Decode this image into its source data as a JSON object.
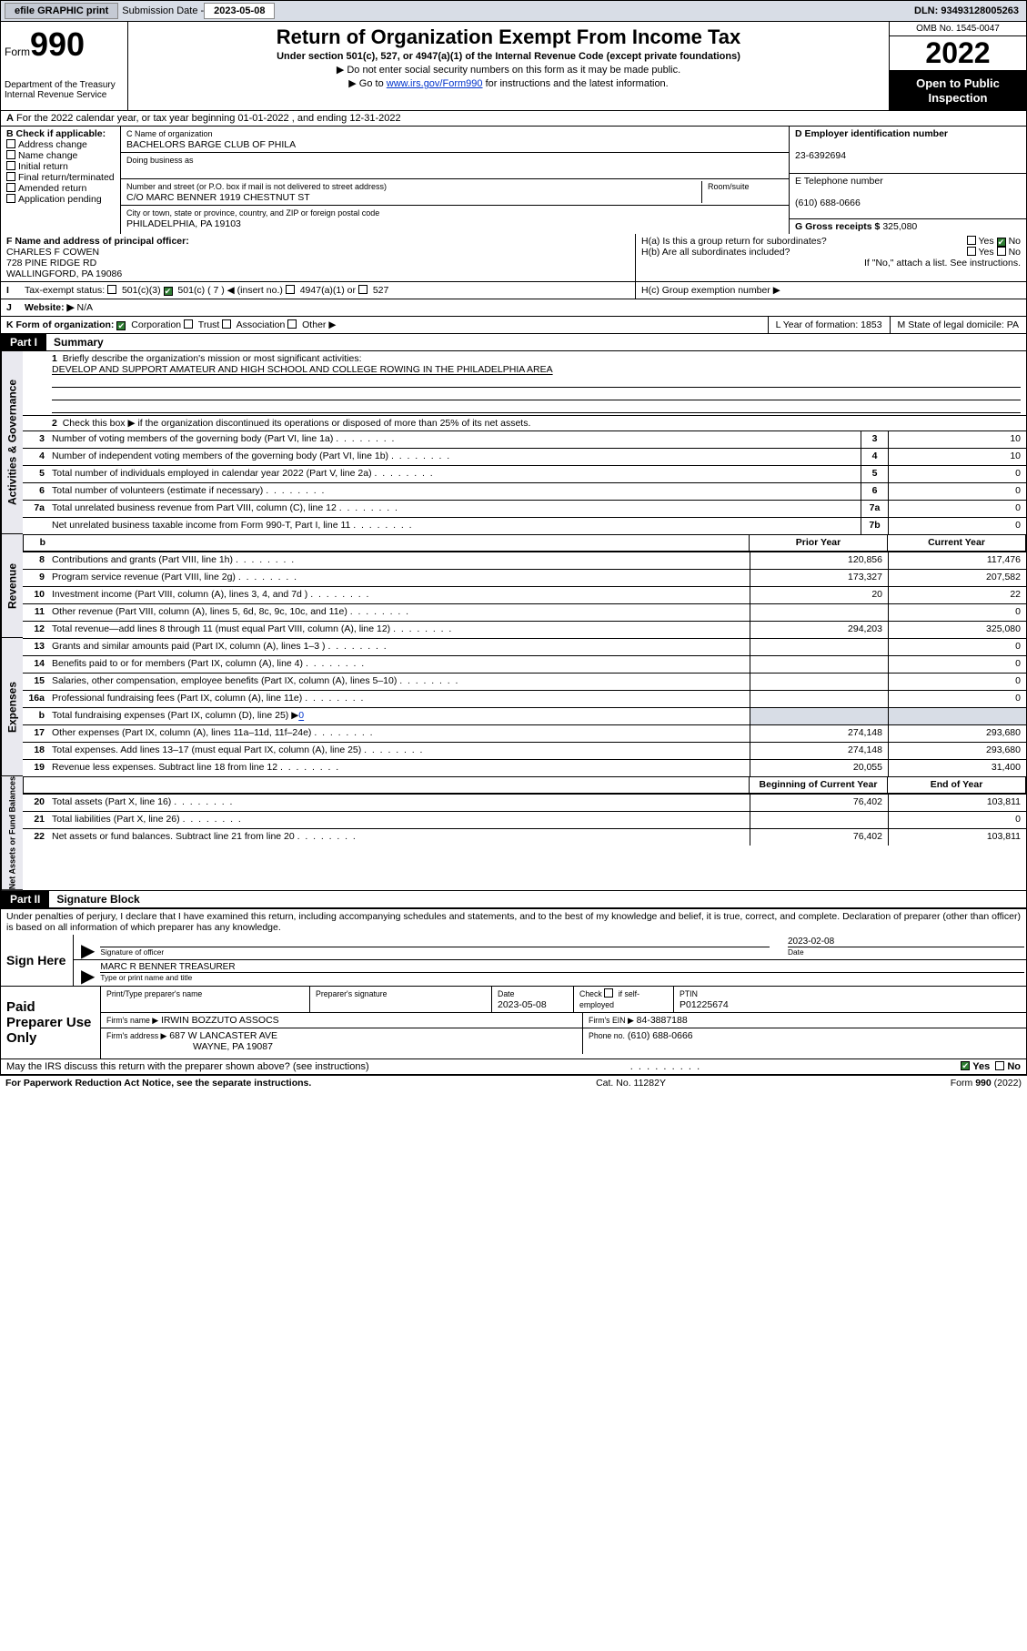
{
  "topbar": {
    "efile": "efile GRAPHIC print",
    "sublabel": "Submission Date -",
    "subdate": "2023-05-08",
    "dln": "DLN: 93493128005263"
  },
  "header": {
    "formword": "Form",
    "formnum": "990",
    "dept": "Department of the Treasury",
    "irs": "Internal Revenue Service",
    "title": "Return of Organization Exempt From Income Tax",
    "sub": "Under section 501(c), 527, or 4947(a)(1) of the Internal Revenue Code (except private foundations)",
    "note": "▶ Do not enter social security numbers on this form as it may be made public.",
    "linkpre": "▶ Go to ",
    "link": "www.irs.gov/Form990",
    "linkpost": " for instructions and the latest information.",
    "omb": "OMB No. 1545-0047",
    "year": "2022",
    "inspect1": "Open to Public",
    "inspect2": "Inspection"
  },
  "period": {
    "text": "For the 2022 calendar year, or tax year beginning 01-01-2022   , and ending 12-31-2022"
  },
  "boxB": {
    "label": "B Check if applicable:",
    "opts": [
      "Address change",
      "Name change",
      "Initial return",
      "Final return/terminated",
      "Amended return",
      "Application pending"
    ]
  },
  "boxC": {
    "nameLabel": "C Name of organization",
    "name": "BACHELORS BARGE CLUB OF PHILA",
    "dba": "Doing business as",
    "streetLabel": "Number and street (or P.O. box if mail is not delivered to street address)",
    "room": "Room/suite",
    "street": "C/O MARC BENNER 1919 CHESTNUT ST",
    "cityLabel": "City or town, state or province, country, and ZIP or foreign postal code",
    "city": "PHILADELPHIA, PA  19103"
  },
  "boxD": {
    "label": "D Employer identification number",
    "val": "23-6392694"
  },
  "boxE": {
    "label": "E Telephone number",
    "val": "(610) 688-0666"
  },
  "boxG": {
    "label": "G Gross receipts $",
    "val": "325,080"
  },
  "officer": {
    "label": "F  Name and address of principal officer:",
    "name": "CHARLES F COWEN",
    "addr1": "728 PINE RIDGE RD",
    "addr2": "WALLINGFORD, PA  19086"
  },
  "boxH": {
    "a": "H(a)  Is this a group return for subordinates?",
    "ayes": "Yes",
    "ano": "No",
    "b": "H(b)  Are all subordinates included?",
    "bnote": "If \"No,\" attach a list. See instructions.",
    "c": "H(c)  Group exemption number ▶"
  },
  "taxexempt": {
    "label": "Tax-exempt status:",
    "o1": "501(c)(3)",
    "o2": "501(c) ( 7 ) ◀ (insert no.)",
    "o3": "4947(a)(1) or",
    "o4": "527"
  },
  "website": {
    "label": "Website: ▶",
    "val": "N/A"
  },
  "formorg": {
    "label": "K Form of organization:",
    "o1": "Corporation",
    "o2": "Trust",
    "o3": "Association",
    "o4": "Other ▶",
    "year": "L Year of formation: 1853",
    "state": "M State of legal domicile: PA"
  },
  "I": "I",
  "J": "J",
  "A": "A",
  "partI": {
    "tag": "Part I",
    "txt": "Summary"
  },
  "summary": {
    "line1": "Briefly describe the organization's mission or most significant activities:",
    "mission": "DEVELOP AND SUPPORT AMATEUR AND HIGH SCHOOL AND COLLEGE ROWING IN THE PHILADELPHIA AREA",
    "line2": "Check this box ▶        if the organization discontinued its operations or disposed of more than 25% of its net assets.",
    "rows_gov": [
      {
        "n": "3",
        "d": "Number of voting members of the governing body (Part VI, line 1a)",
        "k": "3",
        "v": "10"
      },
      {
        "n": "4",
        "d": "Number of independent voting members of the governing body (Part VI, line 1b)",
        "k": "4",
        "v": "10"
      },
      {
        "n": "5",
        "d": "Total number of individuals employed in calendar year 2022 (Part V, line 2a)",
        "k": "5",
        "v": "0"
      },
      {
        "n": "6",
        "d": "Total number of volunteers (estimate if necessary)",
        "k": "6",
        "v": "0"
      },
      {
        "n": "7a",
        "d": "Total unrelated business revenue from Part VIII, column (C), line 12",
        "k": "7a",
        "v": "0"
      },
      {
        "n": "",
        "d": "Net unrelated business taxable income from Form 990-T, Part I, line 11",
        "k": "7b",
        "v": "0"
      }
    ],
    "hdr_b": "b",
    "col_prior": "Prior Year",
    "col_curr": "Current Year",
    "rows_rev": [
      {
        "n": "8",
        "d": "Contributions and grants (Part VIII, line 1h)",
        "p": "120,856",
        "c": "117,476"
      },
      {
        "n": "9",
        "d": "Program service revenue (Part VIII, line 2g)",
        "p": "173,327",
        "c": "207,582"
      },
      {
        "n": "10",
        "d": "Investment income (Part VIII, column (A), lines 3, 4, and 7d )",
        "p": "20",
        "c": "22"
      },
      {
        "n": "11",
        "d": "Other revenue (Part VIII, column (A), lines 5, 6d, 8c, 9c, 10c, and 11e)",
        "p": "",
        "c": "0"
      },
      {
        "n": "12",
        "d": "Total revenue—add lines 8 through 11 (must equal Part VIII, column (A), line 12)",
        "p": "294,203",
        "c": "325,080"
      }
    ],
    "rows_exp": [
      {
        "n": "13",
        "d": "Grants and similar amounts paid (Part IX, column (A), lines 1–3 )",
        "p": "",
        "c": "0"
      },
      {
        "n": "14",
        "d": "Benefits paid to or for members (Part IX, column (A), line 4)",
        "p": "",
        "c": "0"
      },
      {
        "n": "15",
        "d": "Salaries, other compensation, employee benefits (Part IX, column (A), lines 5–10)",
        "p": "",
        "c": "0"
      },
      {
        "n": "16a",
        "d": "Professional fundraising fees (Part IX, column (A), line 11e)",
        "p": "",
        "c": "0"
      }
    ],
    "row16b_n": "b",
    "row16b": "Total fundraising expenses (Part IX, column (D), line 25) ▶",
    "row16b_v": "0",
    "rows_exp2": [
      {
        "n": "17",
        "d": "Other expenses (Part IX, column (A), lines 11a–11d, 11f–24e)",
        "p": "274,148",
        "c": "293,680"
      },
      {
        "n": "18",
        "d": "Total expenses. Add lines 13–17 (must equal Part IX, column (A), line 25)",
        "p": "274,148",
        "c": "293,680"
      },
      {
        "n": "19",
        "d": "Revenue less expenses. Subtract line 18 from line 12",
        "p": "20,055",
        "c": "31,400"
      }
    ],
    "col_beg": "Beginning of Current Year",
    "col_end": "End of Year",
    "rows_net": [
      {
        "n": "20",
        "d": "Total assets (Part X, line 16)",
        "p": "76,402",
        "c": "103,811"
      },
      {
        "n": "21",
        "d": "Total liabilities (Part X, line 26)",
        "p": "",
        "c": "0"
      },
      {
        "n": "22",
        "d": "Net assets or fund balances. Subtract line 21 from line 20",
        "p": "76,402",
        "c": "103,811"
      }
    ],
    "cap_gov": "Activities & Governance",
    "cap_rev": "Revenue",
    "cap_exp": "Expenses",
    "cap_net": "Net Assets or Fund Balances"
  },
  "partII": {
    "tag": "Part II",
    "txt": "Signature Block"
  },
  "sig": {
    "decl": "Under penalties of perjury, I declare that I have examined this return, including accompanying schedules and statements, and to the best of my knowledge and belief, it is true, correct, and complete. Declaration of preparer (other than officer) is based on all information of which preparer has any knowledge.",
    "here": "Sign Here",
    "sigoff": "Signature of officer",
    "date": "Date",
    "sigdate": "2023-02-08",
    "name": "MARC R BENNER  TREASURER",
    "typed": "Type or print name and title"
  },
  "prep": {
    "left": "Paid Preparer Use Only",
    "h1": "Print/Type preparer's name",
    "h2": "Preparer's signature",
    "h3": "Date",
    "dateval": "2023-05-08",
    "h4pre": "Check",
    "h4post": "if self-employed",
    "h5": "PTIN",
    "ptin": "P01225674",
    "firmname": "Firm's name    ▶",
    "firm": "IRWIN BOZZUTO ASSOCS",
    "firmein": "Firm's EIN ▶",
    "ein": "84-3887188",
    "firmaddr": "Firm's address ▶",
    "addr1": "687 W LANCASTER AVE",
    "addr2": "WAYNE, PA  19087",
    "phone": "Phone no.",
    "phoneval": "(610) 688-0666"
  },
  "discuss": {
    "q": "May the IRS discuss this return with the preparer shown above? (see instructions)",
    "yes": "Yes",
    "no": "No"
  },
  "footer": {
    "l": "For Paperwork Reduction Act Notice, see the separate instructions.",
    "m": "Cat. No. 11282Y",
    "r": "Form 990 (2022)"
  }
}
